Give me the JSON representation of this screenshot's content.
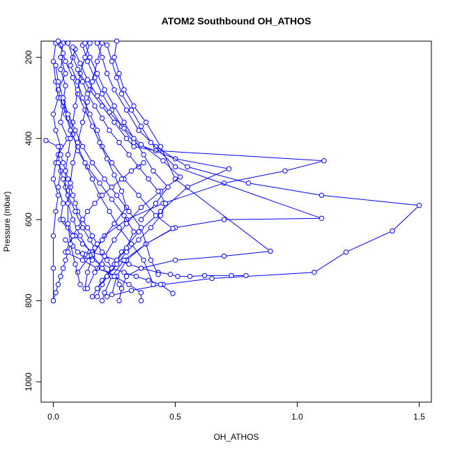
{
  "chart_data": {
    "type": "line",
    "title": "ATOM2 Southbound OH_ATHOS",
    "xlabel": "OH_ATHOS",
    "ylabel": "Pressure (mbar)",
    "xlim": [
      -0.05,
      1.55
    ],
    "ylim": [
      1050,
      160
    ],
    "y_reversed": true,
    "grid": false,
    "legend": "none",
    "x_ticks": [
      0.0,
      0.5,
      1.0,
      1.5
    ],
    "x_tick_labels": [
      "0.0",
      "0.5",
      "1.0",
      "1.5"
    ],
    "y_ticks": [
      200,
      400,
      600,
      800,
      1000
    ],
    "y_tick_labels": [
      "200",
      "400",
      "600",
      "800",
      "1000"
    ],
    "series_color": "#0000ff",
    "marker": "open-circle",
    "series": [
      {
        "x": [
          0.04,
          0.03,
          0.05,
          0.02,
          0.04,
          0.03,
          0.06,
          0.02,
          0.03,
          0.02,
          0.04,
          0.03,
          0.08,
          0.05,
          0.12,
          0.18,
          0.26,
          0.27
        ],
        "y": [
          165,
          200,
          240,
          280,
          320,
          360,
          400,
          440,
          480,
          520,
          560,
          600,
          640,
          680,
          700,
          720,
          740,
          760
        ]
      },
      {
        "x": [
          0.06,
          0.08,
          0.11,
          0.15,
          0.2,
          0.25,
          0.3,
          0.33,
          0.42,
          1.11,
          0.95,
          0.7,
          0.45,
          0.3,
          0.21,
          0.15,
          0.1
        ],
        "y": [
          165,
          200,
          240,
          280,
          320,
          360,
          400,
          420,
          430,
          455,
          480,
          510,
          560,
          600,
          640,
          690,
          730
        ]
      },
      {
        "x": [
          0.12,
          0.14,
          0.17,
          0.2,
          0.24,
          0.28,
          0.33,
          0.5,
          0.72,
          0.55,
          0.44,
          0.35,
          0.28,
          0.24,
          0.2,
          0.18
        ],
        "y": [
          170,
          210,
          250,
          290,
          330,
          370,
          410,
          450,
          475,
          520,
          580,
          630,
          680,
          720,
          760,
          790
        ]
      },
      {
        "x": [
          0.18,
          0.2,
          0.22,
          0.25,
          0.3,
          0.35,
          0.42,
          0.55,
          0.8,
          1.1,
          1.5,
          1.39,
          1.2,
          1.07,
          0.65,
          0.45,
          0.32,
          0.22
        ],
        "y": [
          165,
          200,
          240,
          280,
          330,
          380,
          420,
          470,
          510,
          540,
          565,
          628,
          680,
          730,
          745,
          760,
          775,
          790
        ]
      },
      {
        "x": [
          0.22,
          0.24,
          0.26,
          0.28,
          0.32,
          0.36,
          0.4,
          0.5,
          1.1,
          0.7,
          0.5,
          0.38,
          0.3,
          0.26,
          0.24
        ],
        "y": [
          170,
          210,
          250,
          290,
          330,
          370,
          410,
          470,
          597,
          600,
          620,
          660,
          700,
          740,
          785
        ]
      },
      {
        "x": [
          0.26,
          0.25,
          0.27,
          0.29,
          0.33,
          0.38,
          0.44,
          0.5,
          0.89,
          0.7,
          0.5,
          0.36,
          0.3,
          0.28,
          0.27
        ],
        "y": [
          160,
          200,
          240,
          280,
          320,
          360,
          420,
          500,
          678,
          690,
          700,
          720,
          740,
          770,
          800
        ]
      },
      {
        "x": [
          0.01,
          0.0,
          0.01,
          0.02,
          0.0,
          0.01,
          0.03,
          0.01,
          0.0,
          0.02,
          0.01,
          0.0,
          0.0,
          0.0
        ],
        "y": [
          165,
          210,
          260,
          300,
          340,
          380,
          420,
          460,
          500,
          540,
          580,
          640,
          720,
          800
        ]
      },
      {
        "x": [
          0.09,
          0.07,
          0.1,
          0.12,
          0.15,
          0.18,
          0.2,
          0.24,
          0.29,
          0.35,
          0.42,
          0.49,
          0.38,
          0.29,
          0.24,
          0.21,
          0.2
        ],
        "y": [
          180,
          220,
          260,
          300,
          340,
          380,
          420,
          460,
          500,
          540,
          590,
          622,
          660,
          700,
          740,
          780,
          800
        ]
      },
      {
        "x": [
          0.03,
          0.05,
          0.08,
          0.1,
          0.13,
          0.16,
          0.19,
          0.22,
          0.25,
          0.28,
          0.3,
          0.25,
          0.2,
          0.16,
          0.14,
          0.13
        ],
        "y": [
          170,
          210,
          250,
          290,
          330,
          370,
          410,
          450,
          490,
          530,
          570,
          610,
          650,
          690,
          730,
          770
        ]
      },
      {
        "x": [
          0.02,
          0.04,
          0.03,
          0.05,
          0.04,
          0.06,
          0.08,
          0.1,
          0.14,
          0.19,
          0.24,
          0.29,
          0.33,
          0.3,
          0.25,
          0.2,
          0.16
        ],
        "y": [
          160,
          190,
          230,
          270,
          310,
          350,
          390,
          430,
          470,
          510,
          550,
          590,
          630,
          670,
          710,
          750,
          790
        ]
      },
      {
        "x": [
          0.15,
          0.13,
          0.11,
          0.1,
          0.09,
          0.08,
          0.07,
          0.06,
          0.05,
          0.05,
          0.06,
          0.08,
          0.11,
          0.15,
          0.2,
          0.25,
          0.31,
          0.36,
          0.36
        ],
        "y": [
          165,
          200,
          240,
          280,
          320,
          360,
          400,
          440,
          480,
          520,
          560,
          600,
          640,
          680,
          720,
          740,
          760,
          780,
          800
        ]
      },
      {
        "x": [
          0.08,
          0.11,
          0.14,
          0.18,
          0.23,
          0.29,
          0.36,
          0.45,
          0.52,
          0.44,
          0.36,
          0.3,
          0.25,
          0.21,
          0.17,
          0.14
        ],
        "y": [
          175,
          215,
          255,
          295,
          335,
          375,
          415,
          455,
          495,
          530,
          570,
          610,
          650,
          690,
          730,
          770
        ]
      },
      {
        "x": [
          -0.03,
          0.02,
          0.03,
          0.04,
          0.05,
          0.06,
          0.07,
          0.08,
          0.09,
          0.1,
          0.12,
          0.14,
          0.16,
          0.18,
          0.2,
          0.22,
          0.24
        ],
        "y": [
          405,
          420,
          440,
          460,
          480,
          500,
          520,
          540,
          560,
          580,
          600,
          620,
          640,
          660,
          680,
          700,
          720
        ]
      },
      {
        "x": [
          0.04,
          0.06,
          0.09,
          0.12,
          0.16,
          0.21,
          0.26,
          0.31,
          0.36,
          0.43,
          0.48,
          0.51,
          0.56,
          0.62,
          0.73,
          0.79
        ],
        "y": [
          600,
          620,
          640,
          660,
          680,
          690,
          700,
          710,
          720,
          730,
          735,
          740,
          740,
          738,
          738,
          738
        ]
      },
      {
        "x": [
          0.05,
          0.08,
          0.1,
          0.13,
          0.16,
          0.2,
          0.24,
          0.29,
          0.34,
          0.39,
          0.44,
          0.49
        ],
        "y": [
          650,
          665,
          680,
          690,
          700,
          710,
          720,
          730,
          740,
          750,
          760,
          782
        ]
      },
      {
        "x": [
          0.02,
          0.04,
          0.06,
          0.09,
          0.12,
          0.15,
          0.17,
          0.16,
          0.15,
          0.14,
          0.13,
          0.12
        ],
        "y": [
          460,
          500,
          540,
          580,
          620,
          650,
          670,
          686,
          688,
          690,
          686,
          684
        ]
      },
      {
        "x": [
          0.03,
          0.05,
          0.07,
          0.1,
          0.13,
          0.16,
          0.19,
          0.23,
          0.27,
          0.32,
          0.37,
          0.41
        ],
        "y": [
          300,
          340,
          380,
          420,
          460,
          500,
          540,
          580,
          620,
          660,
          700,
          760
        ]
      },
      {
        "x": [
          0.01,
          0.02,
          0.04,
          0.06,
          0.09,
          0.12,
          0.16,
          0.21,
          0.26,
          0.31,
          0.36,
          0.4,
          0.43
        ],
        "y": [
          220,
          260,
          300,
          340,
          380,
          420,
          460,
          500,
          540,
          580,
          620,
          700,
          735
        ]
      },
      {
        "x": [
          0.13,
          0.15,
          0.18,
          0.21,
          0.25,
          0.29,
          0.33,
          0.37,
          0.41,
          0.47,
          0.42,
          0.36
        ],
        "y": [
          165,
          200,
          240,
          280,
          320,
          360,
          400,
          440,
          480,
          520,
          560,
          600
        ]
      },
      {
        "x": [
          0.2,
          0.18,
          0.16,
          0.14,
          0.12,
          0.1,
          0.08,
          0.07,
          0.06,
          0.06,
          0.07,
          0.09,
          0.11
        ],
        "y": [
          165,
          210,
          260,
          310,
          360,
          410,
          460,
          510,
          560,
          610,
          660,
          710,
          760
        ]
      },
      {
        "x": [
          0.1,
          0.12,
          0.14,
          0.17,
          0.2,
          0.23,
          0.27,
          0.31,
          0.35,
          0.39,
          0.43,
          0.46,
          0.44,
          0.4,
          0.35,
          0.3,
          0.26,
          0.22,
          0.18
        ],
        "y": [
          230,
          260,
          290,
          320,
          350,
          380,
          410,
          440,
          470,
          500,
          530,
          560,
          590,
          620,
          650,
          680,
          710,
          740,
          770
        ]
      },
      {
        "x": [
          0.0,
          0.01,
          0.02,
          0.03,
          0.04,
          0.05,
          0.06,
          0.07,
          0.08,
          0.1,
          0.12,
          0.14,
          0.17,
          0.2,
          0.24,
          0.28,
          0.32,
          0.37
        ],
        "y": [
          800,
          780,
          760,
          740,
          720,
          700,
          680,
          660,
          640,
          620,
          600,
          580,
          560,
          540,
          520,
          500,
          480,
          460
        ]
      }
    ]
  }
}
